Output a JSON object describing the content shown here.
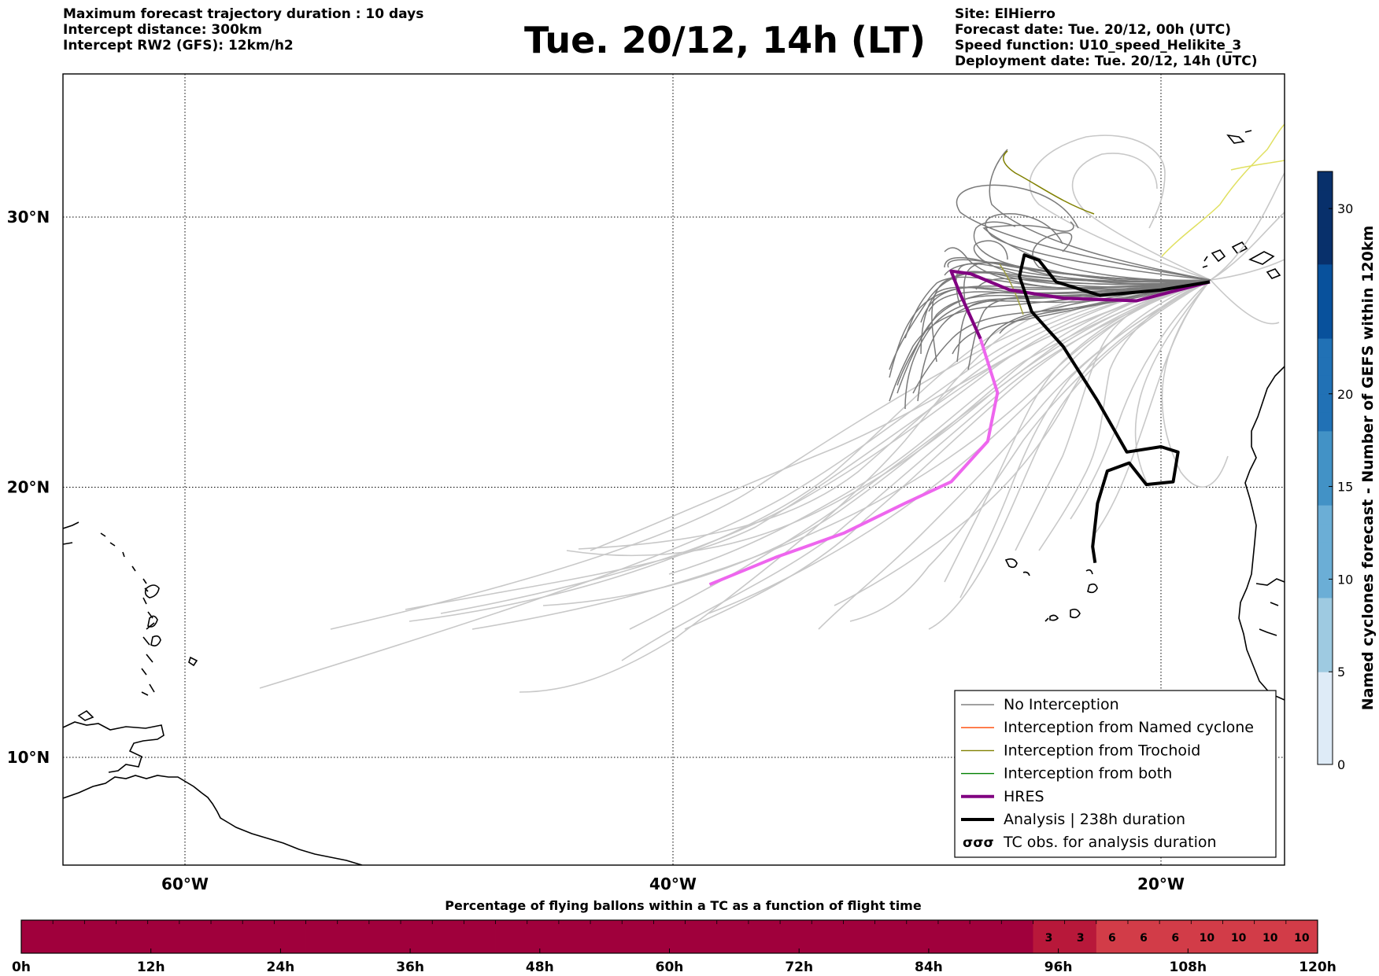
{
  "header": {
    "left": [
      "Maximum forecast trajectory duration : 10 days",
      "Intercept distance: 300km",
      "Intercept RW2 (GFS):  12km/h2"
    ],
    "title": "Tue. 20/12, 14h (LT)",
    "right": [
      "Site: ElHierro",
      "Forecast date: Tue. 20/12, 00h (UTC)",
      "Speed function: U10_speed_Helikite_3",
      "Deployment date: Tue. 20/12, 14h (UTC)"
    ]
  },
  "map": {
    "lon_range": [
      -65,
      15
    ],
    "lat_range": [
      5,
      34.3
    ],
    "lat_labels": [
      "30°N",
      "20°N",
      "10°N"
    ],
    "lon_labels": [
      "60°W",
      "40°W",
      "20°W"
    ],
    "gridline_style": "dotted"
  },
  "legend": {
    "placement": "bottom-right",
    "items": [
      {
        "label": "No Interception",
        "color": "#808080",
        "style": "thin"
      },
      {
        "label": "Interception from Named cyclone",
        "color": "#ff4500",
        "style": "thin"
      },
      {
        "label": "Interception from Trochoid",
        "color": "#808000",
        "style": "thin"
      },
      {
        "label": "Interception from both",
        "color": "#008000",
        "style": "thin"
      },
      {
        "label": "HRES",
        "color": "#800080",
        "style": "thick"
      },
      {
        "label": "Analysis | 238h duration",
        "color": "#000000",
        "style": "thick"
      },
      {
        "label": "TC obs. for analysis duration",
        "color": "#000000",
        "style": "symbol"
      }
    ]
  },
  "colorbar": {
    "label": "Named cyclones forecast - Number of GEFS within 120km",
    "ticks": [
      "0",
      "5",
      "10",
      "15",
      "20",
      "30"
    ],
    "min": 0,
    "max": 32,
    "colors": [
      "#deebf7",
      "#9ecae1",
      "#6baed6",
      "#4292c6",
      "#2171b5",
      "#08519c",
      "#08306b"
    ]
  },
  "bottom_bar": {
    "title": "Percentage of flying ballons within a TC as a function of flight time",
    "ticks": [
      "0h",
      "12h",
      "24h",
      "36h",
      "48h",
      "60h",
      "72h",
      "84h",
      "96h",
      "108h",
      "120h"
    ],
    "base_color": "#a0003c",
    "mid_color": "#b8183a",
    "high_color": "#d23c48",
    "cells": [
      "",
      "",
      "",
      "",
      "",
      "",
      "",
      "",
      "",
      "",
      "",
      "",
      "",
      "",
      "",
      "",
      "",
      "",
      "",
      "",
      "",
      "",
      "",
      "",
      "",
      "",
      "",
      "",
      "",
      "",
      "",
      "",
      "3",
      "3",
      "6",
      "6",
      "6",
      "10",
      "10",
      "10",
      "10"
    ]
  },
  "chart_data": {
    "type": "line",
    "title": "Tue. 20/12, 14h (LT)",
    "x_axis": "longitude",
    "y_axis": "latitude",
    "series": [
      {
        "name": "HRES",
        "color": "#800080",
        "points": [
          [
            -18.0,
            27.6
          ],
          [
            -21,
            26.9
          ],
          [
            -24,
            27.0
          ],
          [
            -26.2,
            27.3
          ],
          [
            -27.8,
            27.9
          ],
          [
            -28.6,
            28.0
          ],
          [
            -28.3,
            27.3
          ],
          [
            -27.4,
            25.5
          ],
          [
            -26.7,
            23.5
          ],
          [
            -27.1,
            21.7
          ],
          [
            -28.6,
            20.2
          ],
          [
            -30.5,
            19.4
          ],
          [
            -33,
            18.3
          ],
          [
            -35.8,
            17.4
          ],
          [
            -38.5,
            16.4
          ]
        ]
      },
      {
        "name": "Analysis | 238h duration",
        "color": "#000000",
        "points": [
          [
            -18.0,
            27.6
          ],
          [
            -20,
            27.3
          ],
          [
            -22.5,
            27.1
          ],
          [
            -24.3,
            27.6
          ],
          [
            -25.0,
            28.4
          ],
          [
            -25.6,
            28.6
          ],
          [
            -25.8,
            27.8
          ],
          [
            -25.3,
            26.5
          ],
          [
            -24.0,
            25.2
          ],
          [
            -22.6,
            23.2
          ],
          [
            -21.4,
            21.3
          ],
          [
            -20.0,
            21.5
          ],
          [
            -19.3,
            21.3
          ],
          [
            -19.5,
            20.2
          ],
          [
            -20.6,
            20.1
          ],
          [
            -21.3,
            20.9
          ],
          [
            -22.2,
            20.6
          ],
          [
            -22.6,
            19.4
          ],
          [
            -22.8,
            17.8
          ],
          [
            -22.7,
            17.2
          ]
        ]
      }
    ]
  }
}
